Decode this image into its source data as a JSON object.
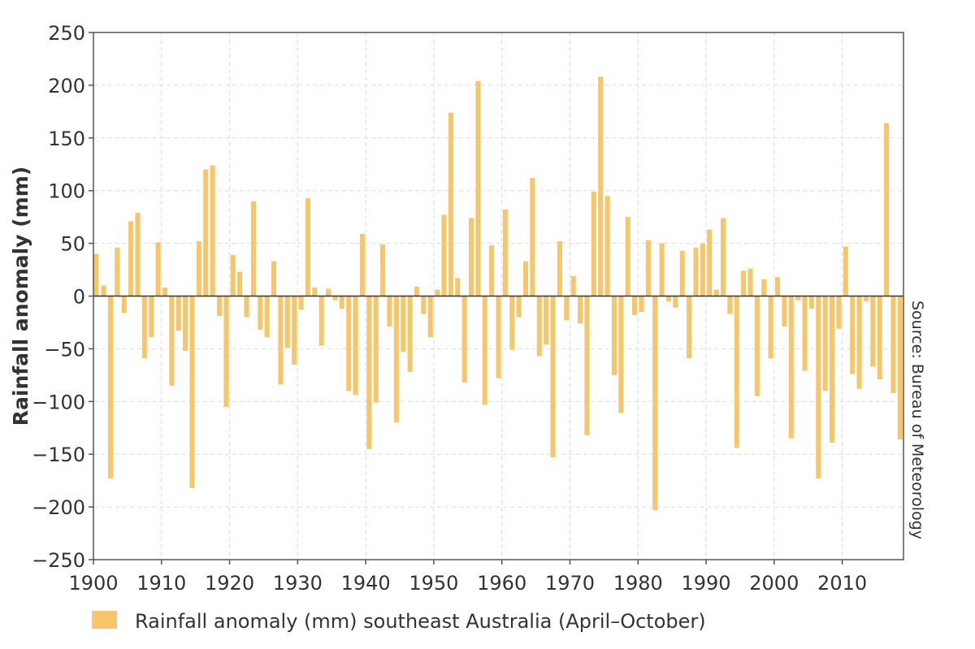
{
  "chart_data": {
    "type": "bar",
    "title": "",
    "xlabel": "",
    "ylabel": "Rainfall anomaly (mm)",
    "source": "Source: Bureau of Meteorology",
    "legend": {
      "label": "Rainfall anomaly (mm) southeast Australia (April–October)",
      "placement": "bottom-left"
    },
    "color": "#F7C56A",
    "grid": true,
    "xlim": [
      1900,
      2019
    ],
    "ylim": [
      -250,
      250
    ],
    "yticks": [
      250,
      200,
      150,
      100,
      50,
      0,
      -50,
      -100,
      -150,
      -200,
      -250
    ],
    "ytick_labels": [
      "250",
      "200",
      "150",
      "100",
      "50",
      "0",
      "−50",
      "−100",
      "−150",
      "−200",
      "−250"
    ],
    "xticks": [
      1900,
      1910,
      1920,
      1930,
      1940,
      1950,
      1960,
      1970,
      1980,
      1990,
      2000,
      2010
    ],
    "xtick_labels": [
      "1900",
      "1910",
      "1920",
      "1930",
      "1940",
      "1950",
      "1960",
      "1970",
      "1980",
      "1990",
      "2000",
      "2010"
    ],
    "x": [
      1900,
      1901,
      1902,
      1903,
      1904,
      1905,
      1906,
      1907,
      1908,
      1909,
      1910,
      1911,
      1912,
      1913,
      1914,
      1915,
      1916,
      1917,
      1918,
      1919,
      1920,
      1921,
      1922,
      1923,
      1924,
      1925,
      1926,
      1927,
      1928,
      1929,
      1930,
      1931,
      1932,
      1933,
      1934,
      1935,
      1936,
      1937,
      1938,
      1939,
      1940,
      1941,
      1942,
      1943,
      1944,
      1945,
      1946,
      1947,
      1948,
      1949,
      1950,
      1951,
      1952,
      1953,
      1954,
      1955,
      1956,
      1957,
      1958,
      1959,
      1960,
      1961,
      1962,
      1963,
      1964,
      1965,
      1966,
      1967,
      1968,
      1969,
      1970,
      1971,
      1972,
      1973,
      1974,
      1975,
      1976,
      1977,
      1978,
      1979,
      1980,
      1981,
      1982,
      1983,
      1984,
      1985,
      1986,
      1987,
      1988,
      1989,
      1990,
      1991,
      1992,
      1993,
      1994,
      1995,
      1996,
      1997,
      1998,
      1999,
      2000,
      2001,
      2002,
      2003,
      2004,
      2005,
      2006,
      2007,
      2008,
      2009,
      2010,
      2011,
      2012,
      2013,
      2014,
      2015,
      2016,
      2017,
      2018
    ],
    "values": [
      40,
      10,
      -173,
      46,
      -16,
      71,
      79,
      -59,
      -39,
      51,
      8,
      -85,
      -33,
      -52,
      -182,
      52,
      120,
      124,
      -19,
      -105,
      39,
      23,
      -20,
      90,
      -32,
      -39,
      33,
      -84,
      -49,
      -65,
      -13,
      93,
      8,
      -47,
      7,
      -4,
      -12,
      -90,
      -94,
      59,
      -145,
      -101,
      49,
      -29,
      -120,
      -53,
      -72,
      9,
      -17,
      -39,
      6,
      77,
      174,
      17,
      -82,
      74,
      204,
      -103,
      48,
      -78,
      82,
      -51,
      -20,
      33,
      112,
      -57,
      -46,
      -153,
      52,
      -23,
      19,
      -26,
      -132,
      99,
      208,
      95,
      -75,
      -111,
      75,
      -18,
      -15,
      53,
      -203,
      50,
      -5,
      -11,
      43,
      -59,
      46,
      50,
      63,
      6,
      74,
      -17,
      -144,
      24,
      26,
      -95,
      16,
      -59,
      18,
      -29,
      -135,
      -4,
      -71,
      -12,
      -173,
      -90,
      -139,
      -31,
      47,
      -74,
      -88,
      -5,
      -67,
      -79,
      164,
      -92,
      -136
    ]
  }
}
